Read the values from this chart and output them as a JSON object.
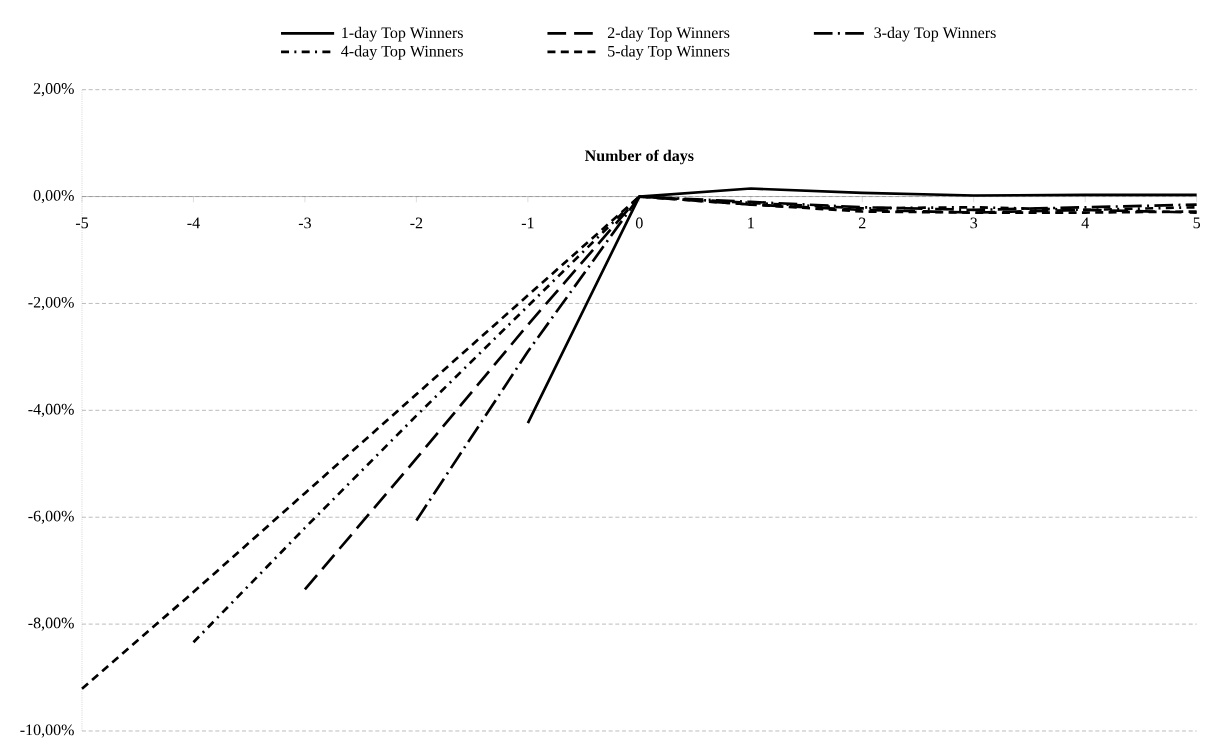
{
  "chart_data": {
    "type": "line",
    "xlabel": "Number of days",
    "x": [
      -5,
      -4,
      -3,
      -2,
      -1,
      0,
      1,
      2,
      3,
      4,
      5
    ],
    "xlim": [
      -5,
      5
    ],
    "xticks": [
      -5,
      -4,
      -3,
      -2,
      -1,
      0,
      1,
      2,
      3,
      4,
      5
    ],
    "ylim": [
      -10,
      2
    ],
    "yticks": [
      {
        "value": -10,
        "label": "-10,00%"
      },
      {
        "value": -8,
        "label": "-8,00%"
      },
      {
        "value": -6,
        "label": "-6,00%"
      },
      {
        "value": -4,
        "label": "-4,00%"
      },
      {
        "value": -2,
        "label": "-2,00%"
      },
      {
        "value": 0,
        "label": "0,00%"
      },
      {
        "value": 2,
        "label": "2,00%"
      }
    ],
    "grid": "y",
    "legend": "top",
    "series": [
      {
        "name": "1-day Top Winners",
        "color": "#000000",
        "line_style": "solid",
        "values": [
          null,
          null,
          null,
          null,
          -4.24,
          0,
          0.15,
          0.07,
          0.02,
          0.03,
          0.03
        ]
      },
      {
        "name": "2-day Top Winners",
        "color": "#000000",
        "line_style": "longdash",
        "values": [
          null,
          null,
          -7.35,
          -4.9,
          -2.4,
          0,
          -0.15,
          -0.25,
          -0.3,
          -0.25,
          -0.3
        ]
      },
      {
        "name": "3-day Top Winners",
        "color": "#000000",
        "line_style": "longdashdot",
        "values": [
          null,
          null,
          null,
          -6.06,
          -2.9,
          0,
          -0.1,
          -0.2,
          -0.25,
          -0.2,
          -0.15
        ]
      },
      {
        "name": "4-day Top Winners",
        "color": "#000000",
        "line_style": "dashdot",
        "values": [
          null,
          -8.34,
          -6.2,
          -4.1,
          -2.05,
          0,
          -0.12,
          -0.22,
          -0.2,
          -0.25,
          -0.2
        ]
      },
      {
        "name": "5-day Top Winners",
        "color": "#000000",
        "line_style": "dashed",
        "values": [
          -9.21,
          -7.4,
          -5.55,
          -3.7,
          -1.85,
          0,
          -0.15,
          -0.28,
          -0.3,
          -0.3,
          -0.28
        ]
      }
    ]
  }
}
